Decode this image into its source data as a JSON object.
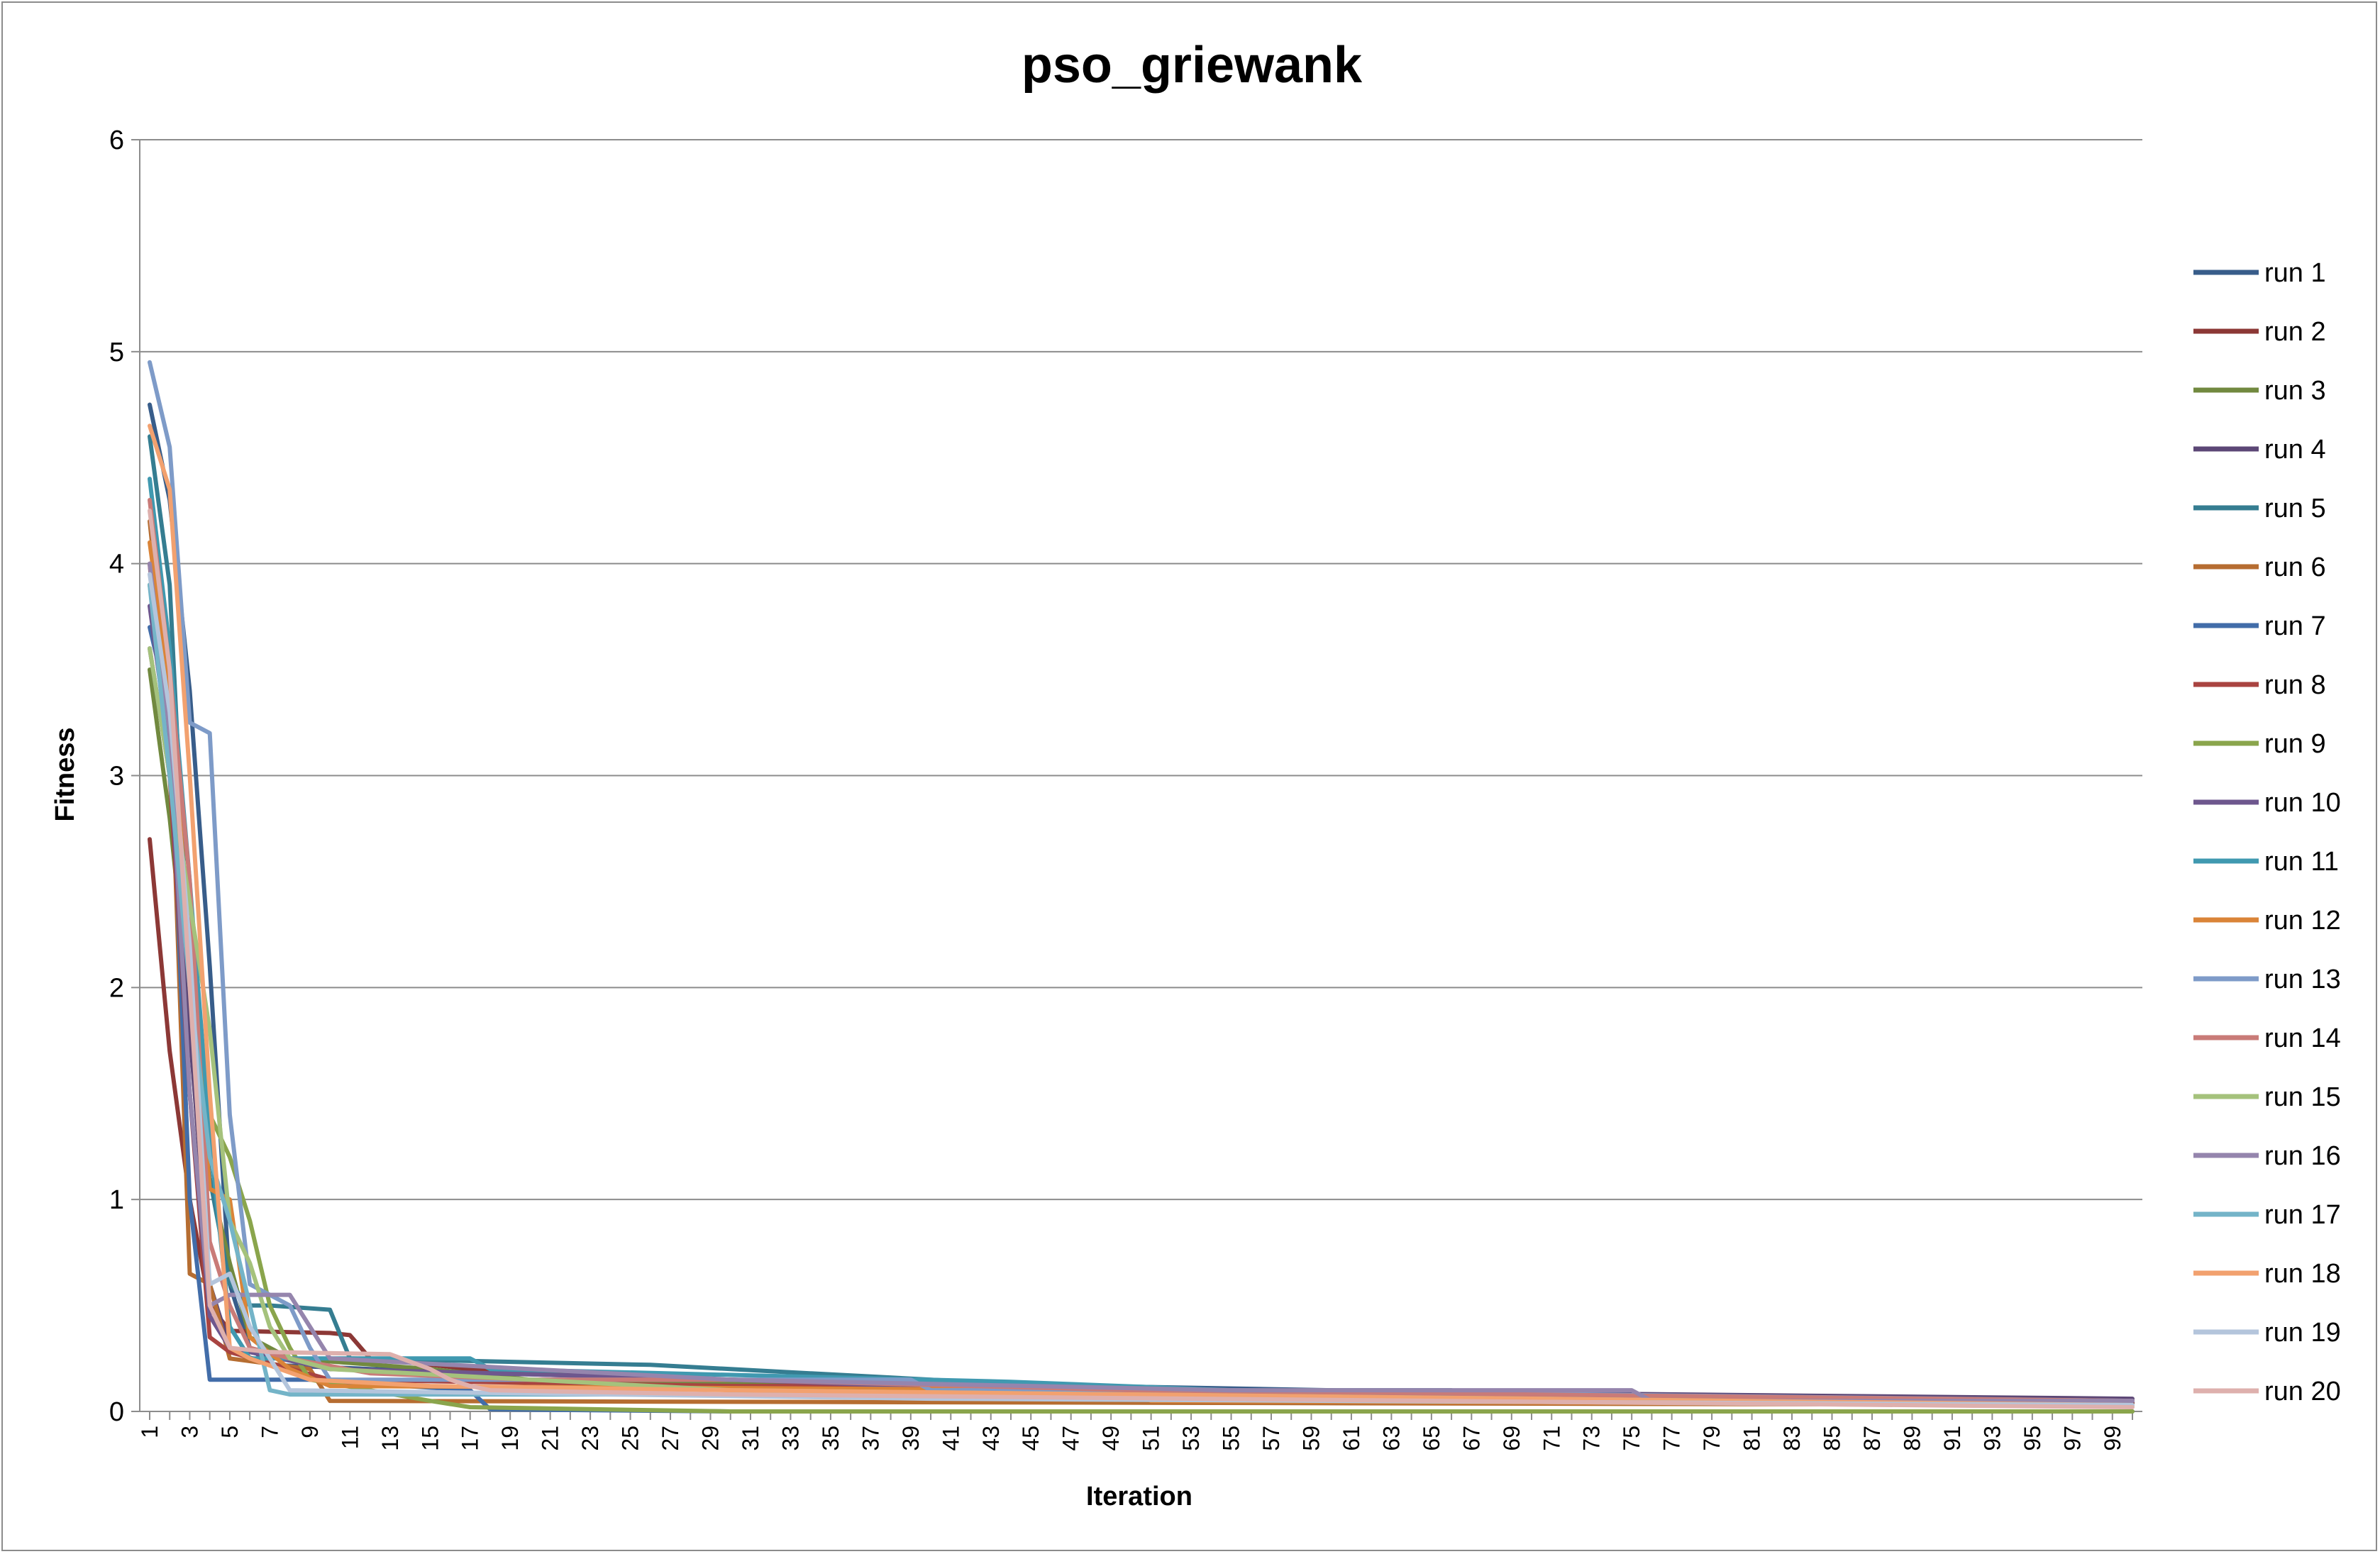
{
  "chart_data": {
    "type": "line",
    "title": "pso_griewank",
    "xlabel": "Iteration",
    "ylabel": "Fitness",
    "ylim": [
      0,
      6
    ],
    "yticks": [
      "0",
      "1",
      "2",
      "3",
      "4",
      "5",
      "6"
    ],
    "xlim": [
      1,
      100
    ],
    "xtick_labels": [
      "1",
      "3",
      "5",
      "7",
      "9",
      "11",
      "13",
      "15",
      "17",
      "19",
      "21",
      "23",
      "25",
      "27",
      "29",
      "31",
      "33",
      "35",
      "37",
      "39",
      "41",
      "43",
      "45",
      "47",
      "49",
      "51",
      "53",
      "55",
      "57",
      "59",
      "61",
      "63",
      "65",
      "67",
      "69",
      "71",
      "73",
      "75",
      "77",
      "79",
      "81",
      "83",
      "85",
      "87",
      "89",
      "91",
      "93",
      "95",
      "97",
      "99"
    ],
    "grid": "horizontal",
    "legend_position": "right",
    "series": [
      {
        "name": "run 1",
        "color": "#385d8a",
        "points": [
          [
            1,
            4.75
          ],
          [
            2,
            4.3
          ],
          [
            3,
            3.4
          ],
          [
            4,
            2.1
          ],
          [
            5,
            0.6
          ],
          [
            6,
            0.3
          ],
          [
            7,
            0.22
          ],
          [
            12,
            0.2
          ],
          [
            30,
            0.15
          ],
          [
            60,
            0.1
          ],
          [
            76,
            0.05
          ],
          [
            100,
            0.04
          ]
        ]
      },
      {
        "name": "run 2",
        "color": "#8c3836",
        "points": [
          [
            1,
            2.7
          ],
          [
            2,
            1.7
          ],
          [
            3,
            1.0
          ],
          [
            4,
            0.5
          ],
          [
            5,
            0.38
          ],
          [
            10,
            0.37
          ],
          [
            11,
            0.36
          ],
          [
            12,
            0.25
          ],
          [
            19,
            0.18
          ],
          [
            25,
            0.17
          ],
          [
            26,
            0.12
          ],
          [
            60,
            0.06
          ],
          [
            100,
            0.04
          ]
        ]
      },
      {
        "name": "run 3",
        "color": "#71893f",
        "points": [
          [
            1,
            3.5
          ],
          [
            2,
            2.8
          ],
          [
            3,
            1.9
          ],
          [
            4,
            1.1
          ],
          [
            5,
            0.7
          ],
          [
            6,
            0.35
          ],
          [
            8,
            0.25
          ],
          [
            15,
            0.2
          ],
          [
            20,
            0.15
          ],
          [
            60,
            0.08
          ],
          [
            100,
            0.03
          ]
        ]
      },
      {
        "name": "run 4",
        "color": "#5c4776",
        "points": [
          [
            1,
            3.6
          ],
          [
            2,
            3.0
          ],
          [
            3,
            1.8
          ],
          [
            4,
            0.6
          ],
          [
            5,
            0.3
          ],
          [
            10,
            0.2
          ],
          [
            30,
            0.15
          ],
          [
            55,
            0.1
          ],
          [
            100,
            0.06
          ]
        ]
      },
      {
        "name": "run 5",
        "color": "#357d91",
        "points": [
          [
            1,
            4.6
          ],
          [
            2,
            3.9
          ],
          [
            3,
            2.0
          ],
          [
            4,
            1.1
          ],
          [
            5,
            0.6
          ],
          [
            6,
            0.5
          ],
          [
            7,
            0.5
          ],
          [
            10,
            0.48
          ],
          [
            11,
            0.25
          ],
          [
            26,
            0.22
          ],
          [
            42,
            0.14
          ],
          [
            55,
            0.1
          ],
          [
            66,
            0.1
          ],
          [
            67,
            0.06
          ],
          [
            100,
            0.05
          ]
        ]
      },
      {
        "name": "run 6",
        "color": "#b66d31",
        "points": [
          [
            1,
            4.2
          ],
          [
            2,
            3.3
          ],
          [
            3,
            0.65
          ],
          [
            4,
            0.6
          ],
          [
            5,
            0.25
          ],
          [
            9,
            0.2
          ],
          [
            10,
            0.05
          ],
          [
            100,
            0.03
          ]
        ]
      },
      {
        "name": "run 7",
        "color": "#426da9",
        "points": [
          [
            1,
            3.7
          ],
          [
            2,
            3.3
          ],
          [
            3,
            1.0
          ],
          [
            4,
            0.15
          ],
          [
            9,
            0.15
          ],
          [
            17,
            0.1
          ],
          [
            18,
            0.01
          ],
          [
            30,
            0.0
          ],
          [
            100,
            0.0
          ]
        ]
      },
      {
        "name": "run 8",
        "color": "#a94441",
        "points": [
          [
            1,
            4.0
          ],
          [
            2,
            3.0
          ],
          [
            3,
            1.5
          ],
          [
            4,
            0.35
          ],
          [
            5,
            0.28
          ],
          [
            10,
            0.15
          ],
          [
            30,
            0.12
          ],
          [
            37,
            0.12
          ],
          [
            38,
            0.07
          ],
          [
            100,
            0.03
          ]
        ]
      },
      {
        "name": "run 9",
        "color": "#8aa54c",
        "points": [
          [
            1,
            3.9
          ],
          [
            2,
            3.2
          ],
          [
            3,
            2.0
          ],
          [
            4,
            1.4
          ],
          [
            5,
            1.2
          ],
          [
            6,
            0.9
          ],
          [
            7,
            0.5
          ],
          [
            8,
            0.3
          ],
          [
            9,
            0.15
          ],
          [
            15,
            0.05
          ],
          [
            17,
            0.02
          ],
          [
            30,
            0.0
          ],
          [
            100,
            0.0
          ]
        ]
      },
      {
        "name": "run 10",
        "color": "#6e578e",
        "points": [
          [
            1,
            3.8
          ],
          [
            2,
            3.1
          ],
          [
            3,
            1.5
          ],
          [
            4,
            0.45
          ],
          [
            5,
            0.3
          ],
          [
            10,
            0.2
          ],
          [
            30,
            0.15
          ],
          [
            45,
            0.1
          ],
          [
            100,
            0.05
          ]
        ]
      },
      {
        "name": "run 11",
        "color": "#4099b0",
        "points": [
          [
            1,
            4.4
          ],
          [
            2,
            3.6
          ],
          [
            3,
            2.5
          ],
          [
            4,
            1.3
          ],
          [
            5,
            0.4
          ],
          [
            6,
            0.25
          ],
          [
            16,
            0.25
          ],
          [
            17,
            0.25
          ],
          [
            18,
            0.2
          ],
          [
            44,
            0.14
          ],
          [
            55,
            0.1
          ],
          [
            100,
            0.03
          ]
        ]
      },
      {
        "name": "run 12",
        "color": "#da8438",
        "points": [
          [
            1,
            4.1
          ],
          [
            2,
            3.4
          ],
          [
            3,
            2.2
          ],
          [
            4,
            1.05
          ],
          [
            5,
            1.0
          ],
          [
            6,
            0.35
          ],
          [
            8,
            0.2
          ],
          [
            10,
            0.12
          ],
          [
            50,
            0.1
          ],
          [
            51,
            0.05
          ],
          [
            100,
            0.03
          ]
        ]
      },
      {
        "name": "run 13",
        "color": "#7e9bc8",
        "points": [
          [
            1,
            4.95
          ],
          [
            2,
            4.55
          ],
          [
            3,
            3.25
          ],
          [
            4,
            3.2
          ],
          [
            5,
            1.4
          ],
          [
            6,
            0.6
          ],
          [
            8,
            0.5
          ],
          [
            9,
            0.3
          ],
          [
            10,
            0.15
          ],
          [
            39,
            0.15
          ],
          [
            40,
            0.1
          ],
          [
            55,
            0.1
          ],
          [
            100,
            0.05
          ]
        ]
      },
      {
        "name": "run 14",
        "color": "#c97b78",
        "points": [
          [
            1,
            4.3
          ],
          [
            2,
            3.5
          ],
          [
            3,
            2.5
          ],
          [
            4,
            0.8
          ],
          [
            5,
            0.5
          ],
          [
            6,
            0.3
          ],
          [
            8,
            0.25
          ],
          [
            12,
            0.18
          ],
          [
            20,
            0.15
          ],
          [
            30,
            0.15
          ],
          [
            50,
            0.1
          ],
          [
            100,
            0.05
          ]
        ]
      },
      {
        "name": "run 15",
        "color": "#a5c27c",
        "points": [
          [
            1,
            3.6
          ],
          [
            2,
            3.0
          ],
          [
            3,
            2.4
          ],
          [
            4,
            1.8
          ],
          [
            5,
            0.9
          ],
          [
            6,
            0.7
          ],
          [
            7,
            0.4
          ],
          [
            8,
            0.25
          ],
          [
            10,
            0.2
          ],
          [
            30,
            0.1
          ],
          [
            100,
            0.03
          ]
        ]
      },
      {
        "name": "run 16",
        "color": "#9585ad",
        "points": [
          [
            1,
            4.0
          ],
          [
            2,
            3.2
          ],
          [
            3,
            1.5
          ],
          [
            4,
            0.5
          ],
          [
            5,
            0.55
          ],
          [
            8,
            0.55
          ],
          [
            9,
            0.4
          ],
          [
            10,
            0.25
          ],
          [
            30,
            0.15
          ],
          [
            55,
            0.1
          ],
          [
            75,
            0.1
          ],
          [
            76,
            0.05
          ],
          [
            100,
            0.05
          ]
        ]
      },
      {
        "name": "run 17",
        "color": "#74b4c8",
        "points": [
          [
            1,
            3.9
          ],
          [
            2,
            3.0
          ],
          [
            3,
            2.0
          ],
          [
            4,
            1.2
          ],
          [
            5,
            0.9
          ],
          [
            6,
            0.5
          ],
          [
            7,
            0.1
          ],
          [
            8,
            0.08
          ],
          [
            30,
            0.08
          ],
          [
            100,
            0.03
          ]
        ]
      },
      {
        "name": "run 18",
        "color": "#f2a16f",
        "points": [
          [
            1,
            4.65
          ],
          [
            2,
            4.35
          ],
          [
            3,
            3.0
          ],
          [
            4,
            1.5
          ],
          [
            5,
            0.3
          ],
          [
            6,
            0.25
          ],
          [
            9,
            0.15
          ],
          [
            15,
            0.12
          ],
          [
            30,
            0.1
          ],
          [
            100,
            0.03
          ]
        ]
      },
      {
        "name": "run 19",
        "color": "#b4c5dc",
        "points": [
          [
            1,
            3.95
          ],
          [
            2,
            3.3
          ],
          [
            3,
            2.2
          ],
          [
            4,
            0.6
          ],
          [
            5,
            0.65
          ],
          [
            6,
            0.4
          ],
          [
            8,
            0.1
          ],
          [
            40,
            0.06
          ],
          [
            100,
            0.03
          ]
        ]
      },
      {
        "name": "run 20",
        "color": "#deb0ad",
        "points": [
          [
            1,
            4.25
          ],
          [
            2,
            3.5
          ],
          [
            3,
            2.0
          ],
          [
            4,
            0.5
          ],
          [
            5,
            0.3
          ],
          [
            7,
            0.28
          ],
          [
            13,
            0.27
          ],
          [
            15,
            0.2
          ],
          [
            16,
            0.15
          ],
          [
            17,
            0.12
          ],
          [
            18,
            0.1
          ],
          [
            30,
            0.08
          ],
          [
            100,
            0.02
          ]
        ]
      }
    ]
  }
}
